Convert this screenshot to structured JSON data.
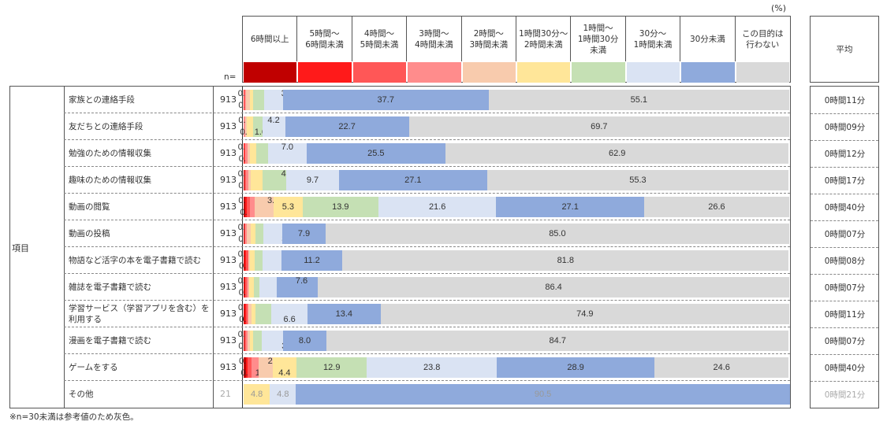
{
  "unit": "(%)",
  "n_label": "n=",
  "avg_header": "平均",
  "group_label": "項目",
  "note": "※n=30未満は参考値のため灰色。",
  "chart_data": {
    "type": "bar",
    "stacked": true,
    "orientation": "horizontal",
    "series": [
      {
        "name": "6時間以上",
        "color": "#C00000"
      },
      {
        "name": "5時間～\n6時間未満",
        "color": "#FF1A1A"
      },
      {
        "name": "4時間～\n5時間未満",
        "color": "#FF5757"
      },
      {
        "name": "3時間～\n4時間未満",
        "color": "#FF8C8C"
      },
      {
        "name": "2時間～\n3時間未満",
        "color": "#F8CBAD"
      },
      {
        "name": "1時間30分～\n2時間未満",
        "color": "#FFE699"
      },
      {
        "name": "1時間～\n1時間30分\n未満",
        "color": "#C5E0B4"
      },
      {
        "name": "30分～\n1時間未満",
        "color": "#DAE3F3"
      },
      {
        "name": "30分未満",
        "color": "#8FAADC"
      },
      {
        "name": "この目的は\n行わない",
        "color": "#D9D9D9"
      }
    ],
    "rows": [
      {
        "label": "家族との連絡手段",
        "n": "913",
        "avg": "0時間11分",
        "values": [
          0,
          0.1,
          0.1,
          0.2,
          0.8,
          0.5,
          2.0,
          3.5,
          37.7,
          55.1
        ]
      },
      {
        "label": "友だちとの連絡手段",
        "n": "913",
        "avg": "0時間09分",
        "values": [
          0,
          0,
          0,
          0.3,
          0.3,
          1.2,
          1.6,
          4.2,
          22.7,
          69.7
        ]
      },
      {
        "label": "勉強のための情報収集",
        "n": "913",
        "avg": "0時間12分",
        "values": [
          0,
          0.1,
          0.2,
          0.4,
          0.4,
          1.2,
          2.2,
          7.0,
          25.5,
          62.9
        ]
      },
      {
        "label": "趣味のための情報収集",
        "n": "913",
        "avg": "0時間17分",
        "values": [
          0.1,
          0.1,
          0.2,
          0.5,
          0.4,
          2.1,
          4.4,
          9.7,
          27.1,
          55.3
        ]
      },
      {
        "label": "動画の閲覧",
        "n": "913",
        "avg": "0時間40分",
        "values": [
          0.3,
          0.3,
          0.5,
          0.9,
          3.5,
          5.3,
          13.9,
          21.6,
          27.1,
          26.6
        ]
      },
      {
        "label": "動画の投稿",
        "n": "913",
        "avg": "0時間07分",
        "values": [
          0.1,
          0.1,
          0.1,
          0.3,
          0.7,
          0.8,
          1.5,
          3.5,
          7.9,
          85.0
        ]
      },
      {
        "label": "物語など活字の本を電子書籍で読む",
        "n": "913",
        "avg": "0時間08分",
        "values": [
          0.1,
          0.3,
          0.4,
          0.1,
          0.3,
          0.8,
          1.4,
          3.5,
          11.2,
          81.8
        ]
      },
      {
        "label": "雑誌を電子書籍で読む",
        "n": "913",
        "avg": "0時間07分",
        "values": [
          0.1,
          0.2,
          0.3,
          0.2,
          0.2,
          0.9,
          1.0,
          3.1,
          7.6,
          86.4
        ]
      },
      {
        "label": "学習サービス（学習アプリを含む）を\n利用する",
        "n": "913",
        "avg": "0時間11分",
        "values": [
          0.2,
          0.2,
          0.3,
          0.2,
          0.5,
          0.7,
          3.0,
          6.6,
          13.4,
          74.9
        ]
      },
      {
        "label": "漫画を電子書籍で読む",
        "n": "913",
        "avg": "0時間07分",
        "values": [
          0.1,
          0.1,
          0.2,
          0.3,
          0.4,
          0.7,
          1.5,
          3.9,
          8.0,
          84.7
        ]
      },
      {
        "label": "ゲームをする",
        "n": "913",
        "avg": "0時間40分",
        "values": [
          0.5,
          0.2,
          0.7,
          1.4,
          2.5,
          4.4,
          12.9,
          23.8,
          28.9,
          24.6
        ]
      },
      {
        "label": "その他",
        "n": "21",
        "avg": "0時間21分",
        "reference": true,
        "values": [
          0,
          0,
          0,
          0,
          0,
          4.8,
          0,
          4.8,
          90.5,
          0
        ]
      }
    ],
    "xlim": [
      0,
      100
    ]
  }
}
